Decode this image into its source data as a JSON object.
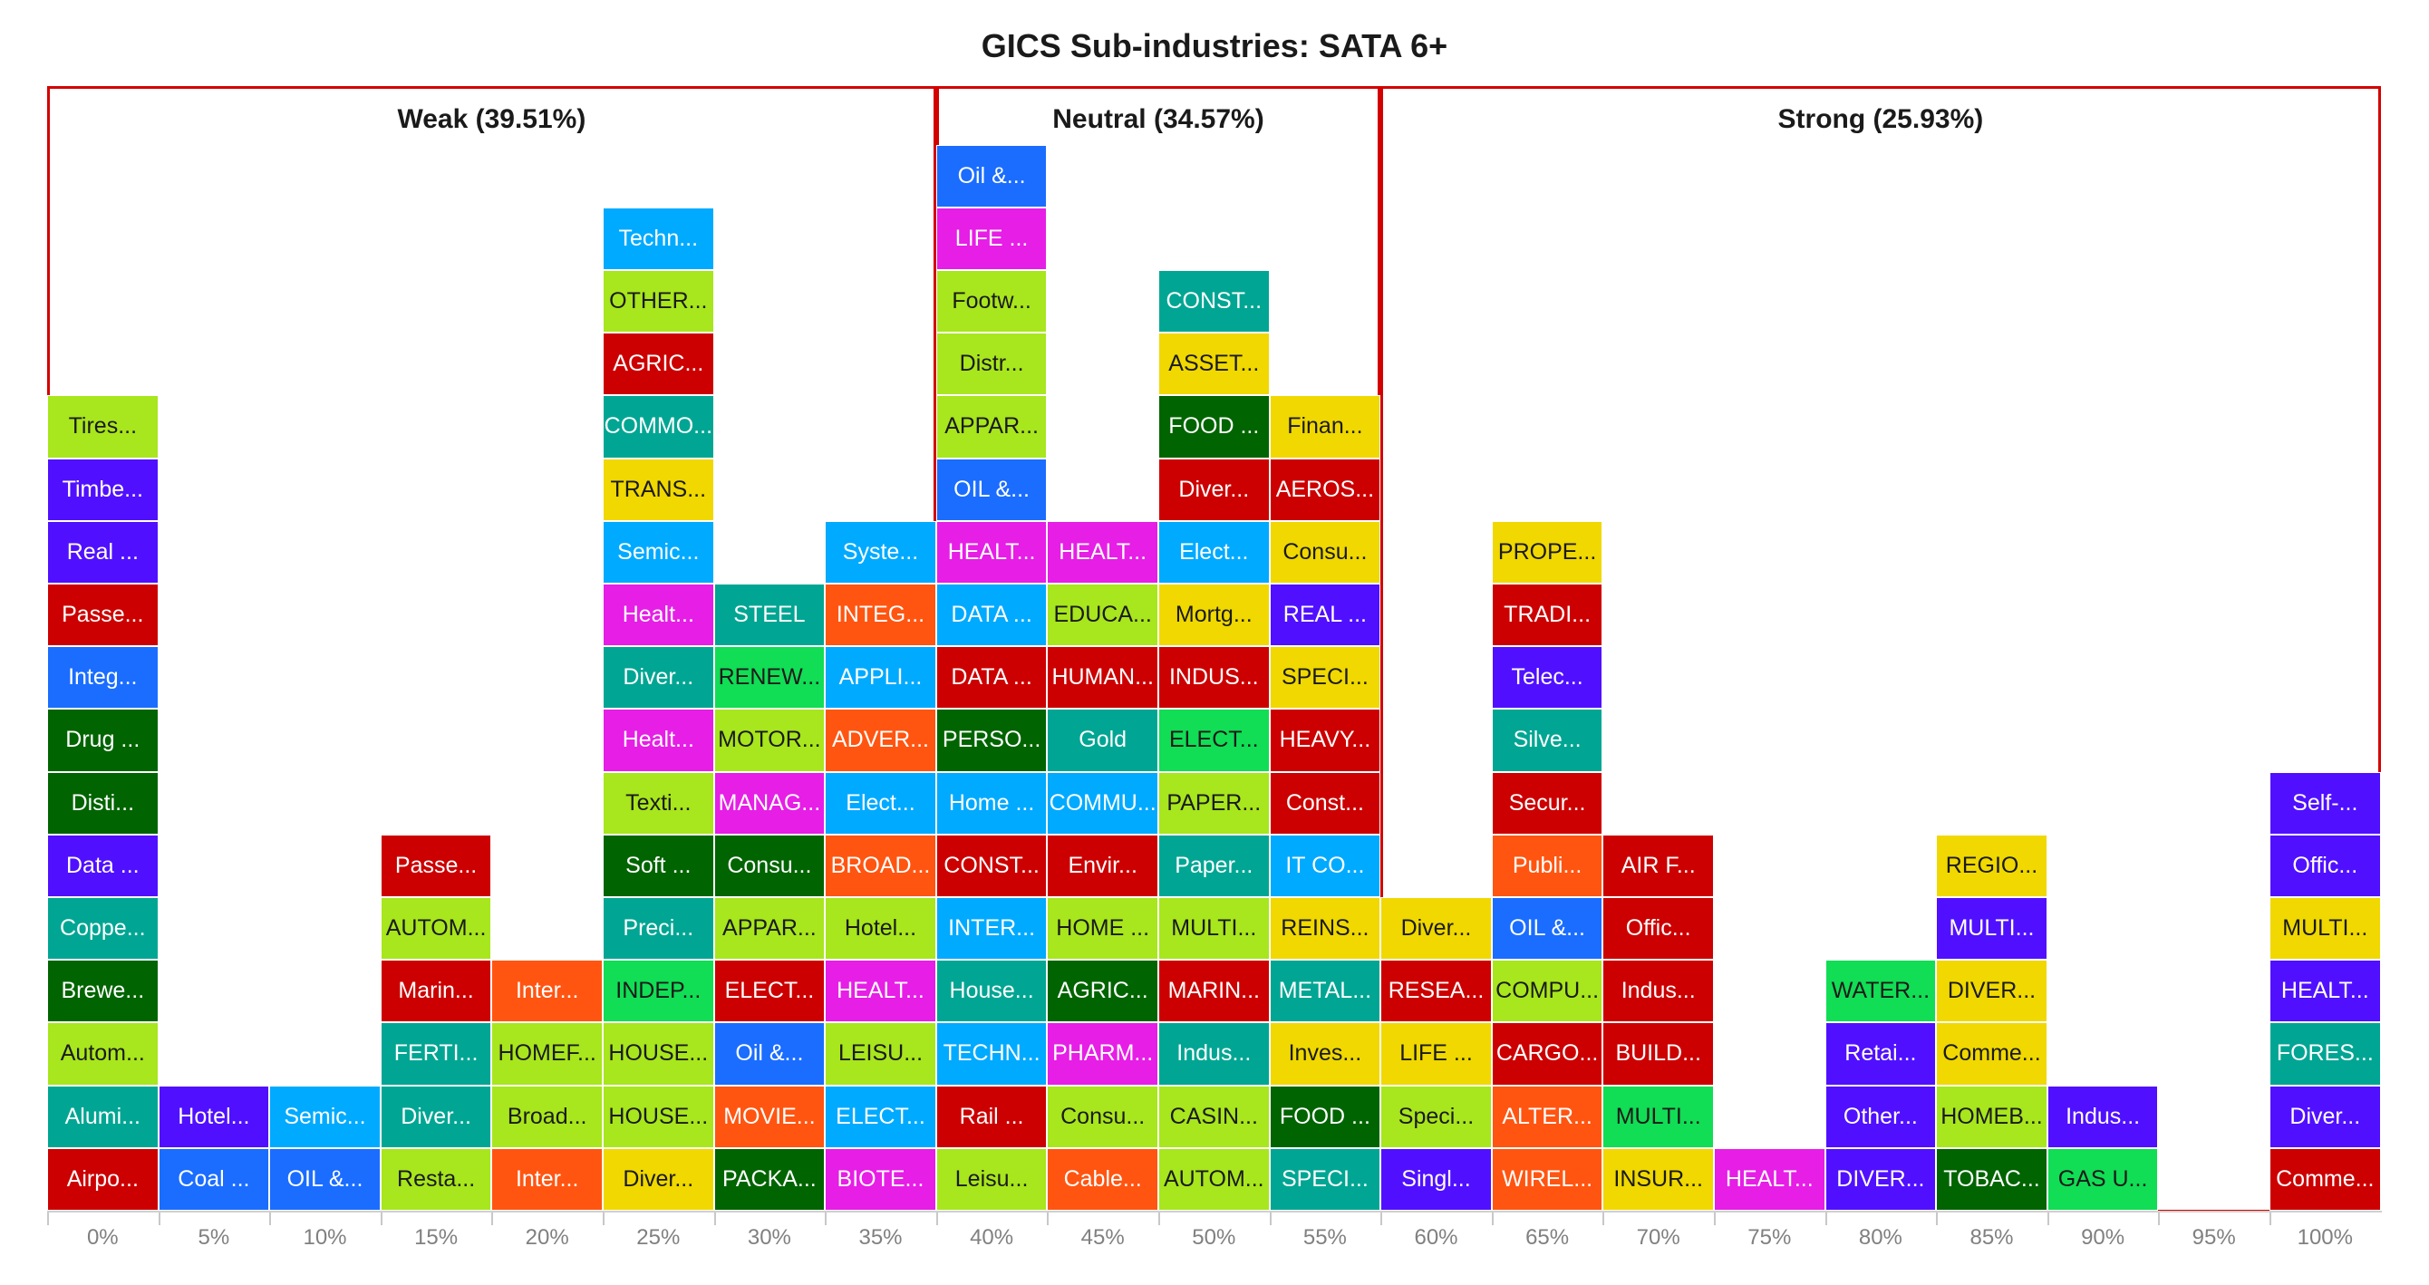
{
  "chart_data": {
    "type": "stacked-cells",
    "title": "GICS Sub-industries: SATA 6+",
    "xticks": [
      "0%",
      "5%",
      "10%",
      "15%",
      "20%",
      "25%",
      "30%",
      "35%",
      "40%",
      "45%",
      "50%",
      "55%",
      "60%",
      "65%",
      "70%",
      "75%",
      "80%",
      "85%",
      "90%",
      "95%",
      "100%"
    ],
    "regions": [
      {
        "label": "Weak (39.51%)",
        "from_col": 0,
        "to_col": 7
      },
      {
        "label": "Neutral (34.57%)",
        "from_col": 8,
        "to_col": 11
      },
      {
        "label": "Strong (25.93%)",
        "from_col": 12,
        "to_col": 20
      }
    ],
    "columns": [
      {
        "x": "0%",
        "cells": [
          {
            "label": "Airpo...",
            "color": "#cc0000"
          },
          {
            "label": "Alumi...",
            "color": "#00a693"
          },
          {
            "label": "Autom...",
            "color": "#a8e61d"
          },
          {
            "label": "Brewe...",
            "color": "#006400"
          },
          {
            "label": "Coppe...",
            "color": "#00a693"
          },
          {
            "label": "Data ...",
            "color": "#5010ff"
          },
          {
            "label": "Disti...",
            "color": "#006400"
          },
          {
            "label": "Drug ...",
            "color": "#006400"
          },
          {
            "label": "Integ...",
            "color": "#1a6dff"
          },
          {
            "label": "Passe...",
            "color": "#cc0000"
          },
          {
            "label": "Real ...",
            "color": "#5010ff"
          },
          {
            "label": "Timbe...",
            "color": "#5010ff"
          },
          {
            "label": "Tires...",
            "color": "#a8e61d"
          }
        ]
      },
      {
        "x": "5%",
        "cells": [
          {
            "label": "Coal ...",
            "color": "#1a6dff"
          },
          {
            "label": "Hotel...",
            "color": "#5010ff"
          }
        ]
      },
      {
        "x": "10%",
        "cells": [
          {
            "label": "OIL &...",
            "color": "#1a6dff"
          },
          {
            "label": "Semic...",
            "color": "#00aaff"
          }
        ]
      },
      {
        "x": "15%",
        "cells": [
          {
            "label": "Resta...",
            "color": "#a8e61d"
          },
          {
            "label": "Diver...",
            "color": "#00a693"
          },
          {
            "label": "FERTI...",
            "color": "#00a693"
          },
          {
            "label": "Marin...",
            "color": "#cc0000"
          },
          {
            "label": "AUTOM...",
            "color": "#a8e61d"
          },
          {
            "label": "Passe...",
            "color": "#cc0000"
          }
        ]
      },
      {
        "x": "20%",
        "cells": [
          {
            "label": "Inter...",
            "color": "#ff5511"
          },
          {
            "label": "Broad...",
            "color": "#a8e61d"
          },
          {
            "label": "HOMEF...",
            "color": "#a8e61d"
          },
          {
            "label": "Inter...",
            "color": "#ff5511"
          }
        ]
      },
      {
        "x": "25%",
        "cells": [
          {
            "label": "Diver...",
            "color": "#f0d800"
          },
          {
            "label": "HOUSE...",
            "color": "#a8e61d"
          },
          {
            "label": "HOUSE...",
            "color": "#a8e61d"
          },
          {
            "label": "INDEP...",
            "color": "#11dd55"
          },
          {
            "label": "Preci...",
            "color": "#00a693"
          },
          {
            "label": "Soft ...",
            "color": "#006400"
          },
          {
            "label": "Texti...",
            "color": "#a8e61d"
          },
          {
            "label": "Healt...",
            "color": "#e61ee6"
          },
          {
            "label": "Diver...",
            "color": "#00a693"
          },
          {
            "label": "Healt...",
            "color": "#e61ee6"
          },
          {
            "label": "Semic...",
            "color": "#00aaff"
          },
          {
            "label": "TRANS...",
            "color": "#f0d800"
          },
          {
            "label": "COMMO...",
            "color": "#00a693"
          },
          {
            "label": "AGRIC...",
            "color": "#cc0000"
          },
          {
            "label": "OTHER...",
            "color": "#a8e61d"
          },
          {
            "label": "Techn...",
            "color": "#00aaff"
          }
        ]
      },
      {
        "x": "30%",
        "cells": [
          {
            "label": "PACKA...",
            "color": "#006400"
          },
          {
            "label": "MOVIE...",
            "color": "#ff5511"
          },
          {
            "label": "Oil &...",
            "color": "#1a6dff"
          },
          {
            "label": "ELECT...",
            "color": "#cc0000"
          },
          {
            "label": "APPAR...",
            "color": "#a8e61d"
          },
          {
            "label": "Consu...",
            "color": "#006400"
          },
          {
            "label": "MANAG...",
            "color": "#e61ee6"
          },
          {
            "label": "MOTOR...",
            "color": "#a8e61d"
          },
          {
            "label": "RENEW...",
            "color": "#11dd55"
          },
          {
            "label": "STEEL",
            "color": "#00a693"
          }
        ]
      },
      {
        "x": "35%",
        "cells": [
          {
            "label": "BIOTE...",
            "color": "#e61ee6"
          },
          {
            "label": "ELECT...",
            "color": "#00aaff"
          },
          {
            "label": "LEISU...",
            "color": "#a8e61d"
          },
          {
            "label": "HEALT...",
            "color": "#e61ee6"
          },
          {
            "label": "Hotel...",
            "color": "#a8e61d"
          },
          {
            "label": "BROAD...",
            "color": "#ff5511"
          },
          {
            "label": "Elect...",
            "color": "#00aaff"
          },
          {
            "label": "ADVER...",
            "color": "#ff5511"
          },
          {
            "label": "APPLI...",
            "color": "#00aaff"
          },
          {
            "label": "INTEG...",
            "color": "#ff5511"
          },
          {
            "label": "Syste...",
            "color": "#00aaff"
          }
        ]
      },
      {
        "x": "40%",
        "cells": [
          {
            "label": "Leisu...",
            "color": "#a8e61d"
          },
          {
            "label": "Rail ...",
            "color": "#cc0000"
          },
          {
            "label": "TECHN...",
            "color": "#00aaff"
          },
          {
            "label": "House...",
            "color": "#00a693"
          },
          {
            "label": "INTER...",
            "color": "#00aaff"
          },
          {
            "label": "CONST...",
            "color": "#cc0000"
          },
          {
            "label": "Home ...",
            "color": "#00aaff"
          },
          {
            "label": "PERSO...",
            "color": "#006400"
          },
          {
            "label": "DATA ...",
            "color": "#cc0000"
          },
          {
            "label": "DATA ...",
            "color": "#00aaff"
          },
          {
            "label": "HEALT...",
            "color": "#e61ee6"
          },
          {
            "label": "OIL &...",
            "color": "#1a6dff"
          },
          {
            "label": "APPAR...",
            "color": "#a8e61d"
          },
          {
            "label": "Distr...",
            "color": "#a8e61d"
          },
          {
            "label": "Footw...",
            "color": "#a8e61d"
          },
          {
            "label": "LIFE ...",
            "color": "#e61ee6"
          },
          {
            "label": "Oil &...",
            "color": "#1a6dff"
          }
        ]
      },
      {
        "x": "45%",
        "cells": [
          {
            "label": "Cable...",
            "color": "#ff5511"
          },
          {
            "label": "Consu...",
            "color": "#a8e61d"
          },
          {
            "label": "PHARM...",
            "color": "#e61ee6"
          },
          {
            "label": "AGRIC...",
            "color": "#006400"
          },
          {
            "label": "HOME ...",
            "color": "#a8e61d"
          },
          {
            "label": "Envir...",
            "color": "#cc0000"
          },
          {
            "label": "COMMU...",
            "color": "#00aaff"
          },
          {
            "label": "Gold",
            "color": "#00a693"
          },
          {
            "label": "HUMAN...",
            "color": "#cc0000"
          },
          {
            "label": "EDUCA...",
            "color": "#a8e61d"
          },
          {
            "label": "HEALT...",
            "color": "#e61ee6"
          }
        ]
      },
      {
        "x": "50%",
        "cells": [
          {
            "label": "AUTOM...",
            "color": "#a8e61d"
          },
          {
            "label": "CASIN...",
            "color": "#a8e61d"
          },
          {
            "label": "Indus...",
            "color": "#00a693"
          },
          {
            "label": "MARIN...",
            "color": "#cc0000"
          },
          {
            "label": "MULTI...",
            "color": "#a8e61d"
          },
          {
            "label": "Paper...",
            "color": "#00a693"
          },
          {
            "label": "PAPER...",
            "color": "#a8e61d"
          },
          {
            "label": "ELECT...",
            "color": "#11dd55"
          },
          {
            "label": "INDUS...",
            "color": "#cc0000"
          },
          {
            "label": "Mortg...",
            "color": "#f0d800"
          },
          {
            "label": "Elect...",
            "color": "#00aaff"
          },
          {
            "label": "Diver...",
            "color": "#cc0000"
          },
          {
            "label": "FOOD ...",
            "color": "#006400"
          },
          {
            "label": "ASSET...",
            "color": "#f0d800"
          },
          {
            "label": "CONST...",
            "color": "#00a693"
          }
        ]
      },
      {
        "x": "55%",
        "cells": [
          {
            "label": "SPECI...",
            "color": "#00a693"
          },
          {
            "label": "FOOD ...",
            "color": "#006400"
          },
          {
            "label": "Inves...",
            "color": "#f0d800"
          },
          {
            "label": "METAL...",
            "color": "#00a693"
          },
          {
            "label": "REINS...",
            "color": "#f0d800"
          },
          {
            "label": "IT CO...",
            "color": "#00aaff"
          },
          {
            "label": "Const...",
            "color": "#cc0000"
          },
          {
            "label": "HEAVY...",
            "color": "#cc0000"
          },
          {
            "label": "SPECI...",
            "color": "#f0d800"
          },
          {
            "label": "REAL ...",
            "color": "#5010ff"
          },
          {
            "label": "Consu...",
            "color": "#f0d800"
          },
          {
            "label": "AEROS...",
            "color": "#cc0000"
          },
          {
            "label": "Finan...",
            "color": "#f0d800"
          }
        ]
      },
      {
        "x": "60%",
        "cells": [
          {
            "label": "Singl...",
            "color": "#5010ff"
          },
          {
            "label": "Speci...",
            "color": "#a8e61d"
          },
          {
            "label": "LIFE ...",
            "color": "#f0d800"
          },
          {
            "label": "RESEA...",
            "color": "#cc0000"
          },
          {
            "label": "Diver...",
            "color": "#f0d800"
          }
        ]
      },
      {
        "x": "65%",
        "cells": [
          {
            "label": "WIREL...",
            "color": "#ff5511"
          },
          {
            "label": "ALTER...",
            "color": "#ff5511"
          },
          {
            "label": "CARGO...",
            "color": "#cc0000"
          },
          {
            "label": "COMPU...",
            "color": "#a8e61d"
          },
          {
            "label": "OIL &...",
            "color": "#1a6dff"
          },
          {
            "label": "Publi...",
            "color": "#ff5511"
          },
          {
            "label": "Secur...",
            "color": "#cc0000"
          },
          {
            "label": "Silve...",
            "color": "#00a693"
          },
          {
            "label": "Telec...",
            "color": "#5010ff"
          },
          {
            "label": "TRADI...",
            "color": "#cc0000"
          },
          {
            "label": "PROPE...",
            "color": "#f0d800"
          }
        ]
      },
      {
        "x": "70%",
        "cells": [
          {
            "label": "INSUR...",
            "color": "#f0d800"
          },
          {
            "label": "MULTI...",
            "color": "#11dd55"
          },
          {
            "label": "BUILD...",
            "color": "#cc0000"
          },
          {
            "label": "Indus...",
            "color": "#cc0000"
          },
          {
            "label": "Offic...",
            "color": "#cc0000"
          },
          {
            "label": "AIR F...",
            "color": "#cc0000"
          }
        ]
      },
      {
        "x": "75%",
        "cells": [
          {
            "label": "HEALT...",
            "color": "#e61ee6"
          }
        ]
      },
      {
        "x": "80%",
        "cells": [
          {
            "label": "DIVER...",
            "color": "#5010ff"
          },
          {
            "label": "Other...",
            "color": "#5010ff"
          },
          {
            "label": "Retai...",
            "color": "#5010ff"
          },
          {
            "label": "WATER...",
            "color": "#11dd55"
          }
        ]
      },
      {
        "x": "85%",
        "cells": [
          {
            "label": "TOBAC...",
            "color": "#006400"
          },
          {
            "label": "HOMEB...",
            "color": "#a8e61d"
          },
          {
            "label": "Comme...",
            "color": "#f0d800"
          },
          {
            "label": "DIVER...",
            "color": "#f0d800"
          },
          {
            "label": "MULTI...",
            "color": "#5010ff"
          },
          {
            "label": "REGIO...",
            "color": "#f0d800"
          }
        ]
      },
      {
        "x": "90%",
        "cells": [
          {
            "label": "GAS U...",
            "color": "#11dd55"
          },
          {
            "label": "Indus...",
            "color": "#5010ff"
          }
        ]
      },
      {
        "x": "95%",
        "cells": []
      },
      {
        "x": "100%",
        "cells": [
          {
            "label": "Comme...",
            "color": "#cc0000"
          },
          {
            "label": "Diver...",
            "color": "#5010ff"
          },
          {
            "label": "FORES...",
            "color": "#00a693"
          },
          {
            "label": "HEALT...",
            "color": "#5010ff"
          },
          {
            "label": "MULTI...",
            "color": "#f0d800"
          },
          {
            "label": "Offic...",
            "color": "#5010ff"
          },
          {
            "label": "Self-...",
            "color": "#5010ff"
          }
        ]
      }
    ],
    "frame_color": "#d40000",
    "dark_text_colors": [
      "#a8e61d",
      "#f0d800",
      "#11dd55"
    ]
  }
}
